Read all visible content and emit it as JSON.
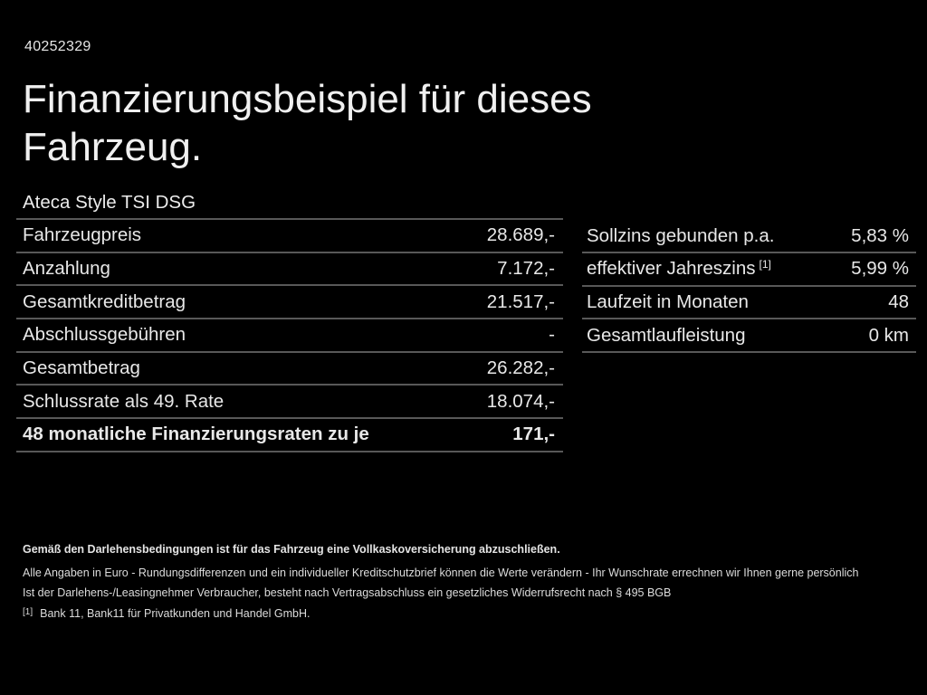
{
  "page": {
    "background_color": "#000000",
    "text_color": "#eaeaea",
    "divider_color": "#585858"
  },
  "header": {
    "vehicle_id": "40252329",
    "title_line1": "Finanzierungsbeispiel für dieses",
    "title_line2": "Fahrzeug.",
    "model": "Ateca Style TSI DSG"
  },
  "finance_table": {
    "rows": [
      {
        "label": "Fahrzeugpreis",
        "value": "28.689,-"
      },
      {
        "label": "Anzahlung",
        "value": "7.172,-"
      },
      {
        "label": "Gesamtkreditbetrag",
        "value": "21.517,-"
      },
      {
        "label": "Abschlussgebühren",
        "value": "-"
      },
      {
        "label": "Gesamtbetrag",
        "value": "26.282,-"
      },
      {
        "label": "Schlussrate als 49. Rate",
        "value": "18.074,-"
      },
      {
        "label": "48 monatliche Finanzierungsraten zu je",
        "value": "171,-",
        "bold": true
      }
    ]
  },
  "conditions_table": {
    "rows": [
      {
        "label": "Sollzins gebunden p.a.",
        "sup": "",
        "value": "5,83 %"
      },
      {
        "label": "effektiver Jahreszins",
        "sup": "[1]",
        "value": "5,99 %"
      },
      {
        "label": "Laufzeit in Monaten",
        "sup": "",
        "value": "48"
      },
      {
        "label": "Gesamtlaufleistung",
        "sup": "",
        "value": "0 km"
      }
    ]
  },
  "footnotes": {
    "insurance_note": "Gemäß den Darlehensbedingungen ist für das Fahrzeug eine Vollkaskoversicherung abzuschließen.",
    "disclaimer_line1": "Alle Angaben in Euro - Rundungsdifferenzen und ein individueller Kreditschutzbrief können die Werte verändern - Ihr Wunschrate errechnen wir Ihnen gerne persönlich",
    "disclaimer_line2": "Ist der Darlehens-/Leasingnehmer Verbraucher, besteht nach Vertragsabschluss ein gesetzliches Widerrufsrecht nach § 495 BGB",
    "bank_ref_marker": "[1]",
    "bank_ref": "Bank 11, Bank11 für Privatkunden und Handel GmbH."
  }
}
